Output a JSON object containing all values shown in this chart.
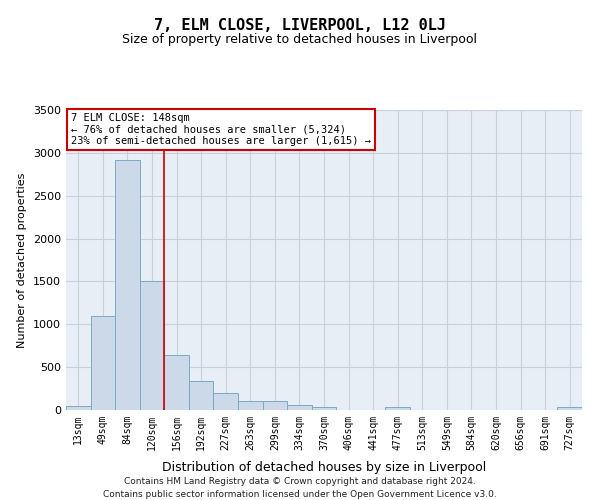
{
  "title": "7, ELM CLOSE, LIVERPOOL, L12 0LJ",
  "subtitle": "Size of property relative to detached houses in Liverpool",
  "xlabel": "Distribution of detached houses by size in Liverpool",
  "ylabel": "Number of detached properties",
  "bar_labels": [
    "13sqm",
    "49sqm",
    "84sqm",
    "120sqm",
    "156sqm",
    "192sqm",
    "227sqm",
    "263sqm",
    "299sqm",
    "334sqm",
    "370sqm",
    "406sqm",
    "441sqm",
    "477sqm",
    "513sqm",
    "549sqm",
    "584sqm",
    "620sqm",
    "656sqm",
    "691sqm",
    "727sqm"
  ],
  "bar_values": [
    50,
    1100,
    2920,
    1510,
    640,
    340,
    200,
    110,
    100,
    55,
    30,
    0,
    0,
    30,
    0,
    0,
    0,
    0,
    0,
    0,
    30
  ],
  "bar_color": "#ccd9e8",
  "bar_edge_color": "#7aaac8",
  "vline_index": 4,
  "vline_color": "#cc0000",
  "ylim": [
    0,
    3500
  ],
  "yticks": [
    0,
    500,
    1000,
    1500,
    2000,
    2500,
    3000,
    3500
  ],
  "annotation_text": "7 ELM CLOSE: 148sqm\n← 76% of detached houses are smaller (5,324)\n23% of semi-detached houses are larger (1,615) →",
  "annotation_box_facecolor": "white",
  "annotation_box_edgecolor": "#cc0000",
  "footer_line1": "Contains HM Land Registry data © Crown copyright and database right 2024.",
  "footer_line2": "Contains public sector information licensed under the Open Government Licence v3.0.",
  "grid_color": "#c8d0dc",
  "bg_color": "#e8eef5",
  "title_fontsize": 11,
  "subtitle_fontsize": 9,
  "tick_fontsize": 7,
  "ylabel_fontsize": 8,
  "xlabel_fontsize": 9
}
